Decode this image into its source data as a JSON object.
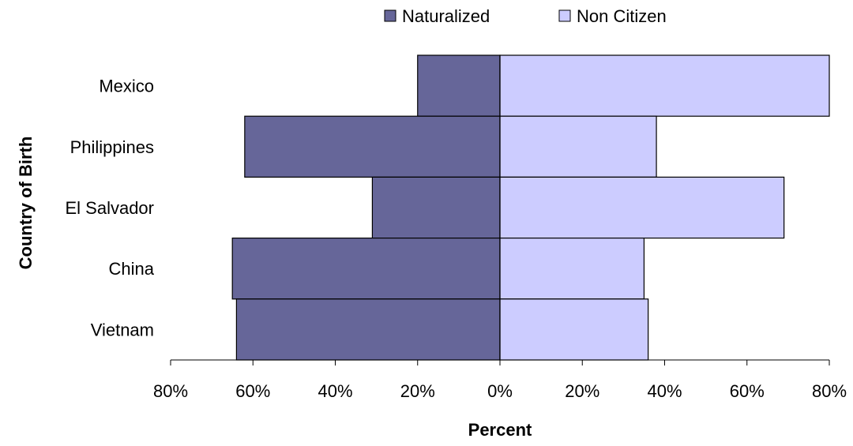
{
  "chart_data": {
    "type": "bar",
    "orientation": "horizontal-diverging",
    "categories": [
      "Mexico",
      "Philippines",
      "El Salvador",
      "China",
      "Vietnam"
    ],
    "series": [
      {
        "name": "Naturalized",
        "values": [
          20,
          62,
          31,
          65,
          64
        ],
        "color": "#666699",
        "direction": "left"
      },
      {
        "name": "Non Citizen",
        "values": [
          80,
          38,
          69,
          35,
          36
        ],
        "color": "#ccccff",
        "direction": "right"
      }
    ],
    "xlabel": "Percent",
    "ylabel": "Country of Birth",
    "xlim": [
      -80,
      80
    ],
    "xticks": [
      "80%",
      "60%",
      "40%",
      "20%",
      "0%",
      "20%",
      "40%",
      "60%",
      "80%"
    ],
    "grid": false,
    "legend": "top-center"
  }
}
